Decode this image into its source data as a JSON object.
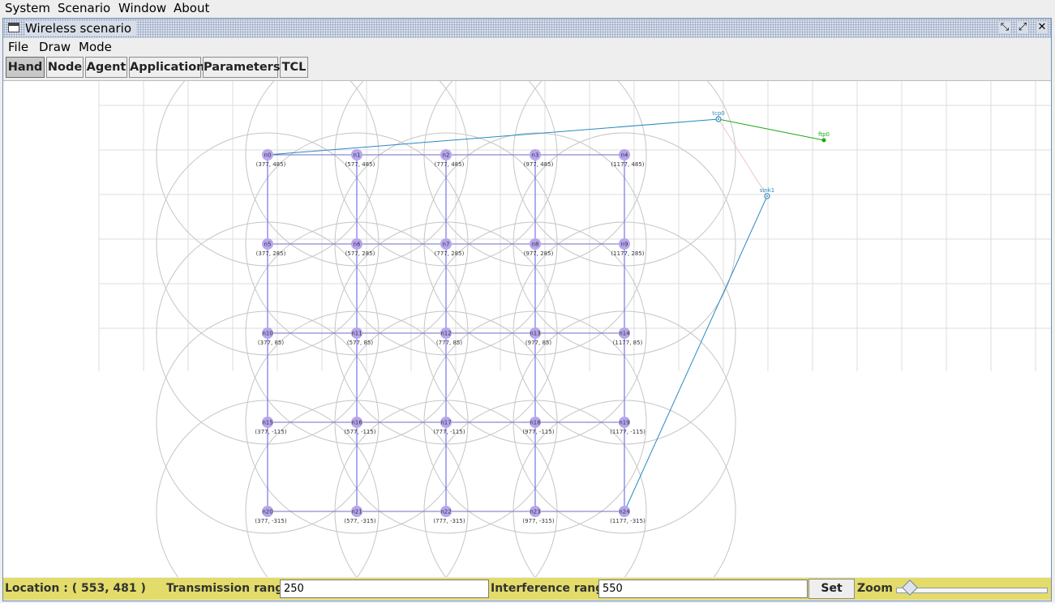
{
  "menubar": [
    "System",
    "Scenario",
    "Window",
    "About"
  ],
  "window": {
    "title": "Wireless scenario",
    "menus": [
      "File",
      "Draw",
      "Mode"
    ]
  },
  "toolbar": {
    "buttons": [
      "Hand",
      "Node",
      "Agent",
      "Application",
      "Parameters",
      "TCL"
    ],
    "active": "Hand"
  },
  "nodes": [
    {
      "id": "n0",
      "coord": "(377, 485)"
    },
    {
      "id": "n1",
      "coord": "(577, 485)"
    },
    {
      "id": "n2",
      "coord": "(777, 485)"
    },
    {
      "id": "n3",
      "coord": "(977, 485)"
    },
    {
      "id": "n4",
      "coord": "(1177, 485)"
    },
    {
      "id": "n5",
      "coord": "(377, 285)"
    },
    {
      "id": "n6",
      "coord": "(577, 285)"
    },
    {
      "id": "n7",
      "coord": "(777, 285)"
    },
    {
      "id": "n8",
      "coord": "(977, 285)"
    },
    {
      "id": "n9",
      "coord": "(1177, 285)"
    },
    {
      "id": "n10",
      "coord": "(377, 85)"
    },
    {
      "id": "n11",
      "coord": "(577, 85)"
    },
    {
      "id": "n12",
      "coord": "(777, 85)"
    },
    {
      "id": "n13",
      "coord": "(977, 85)"
    },
    {
      "id": "n14",
      "coord": "(1177, 85)"
    },
    {
      "id": "n15",
      "coord": "(377, -115)"
    },
    {
      "id": "n16",
      "coord": "(577, -115)"
    },
    {
      "id": "n17",
      "coord": "(777, -115)"
    },
    {
      "id": "n18",
      "coord": "(977, -115)"
    },
    {
      "id": "n19",
      "coord": "(1177, -115)"
    },
    {
      "id": "n20",
      "coord": "(377, -315)"
    },
    {
      "id": "n21",
      "coord": "(577, -315)"
    },
    {
      "id": "n22",
      "coord": "(777, -315)"
    },
    {
      "id": "n23",
      "coord": "(977, -315)"
    },
    {
      "id": "n24",
      "coord": "(1177, -315)"
    }
  ],
  "agents": [
    {
      "name": "tcp0"
    },
    {
      "name": "ftp0"
    },
    {
      "name": "sink1"
    }
  ],
  "status": {
    "location_label": "Location : ( 553, 481 )",
    "transmission_label": "Transmission range",
    "transmission_value": "250",
    "interference_label": "Interference range",
    "interference_value": "550",
    "set_label": "Set",
    "zoom_label": "Zoom"
  },
  "colors": {
    "node_fill": "#b7a6ee",
    "link": "#5a5ae6",
    "agent": "#2a8ac0",
    "app": "#18a818",
    "status_bg": "#e3dc6a"
  }
}
